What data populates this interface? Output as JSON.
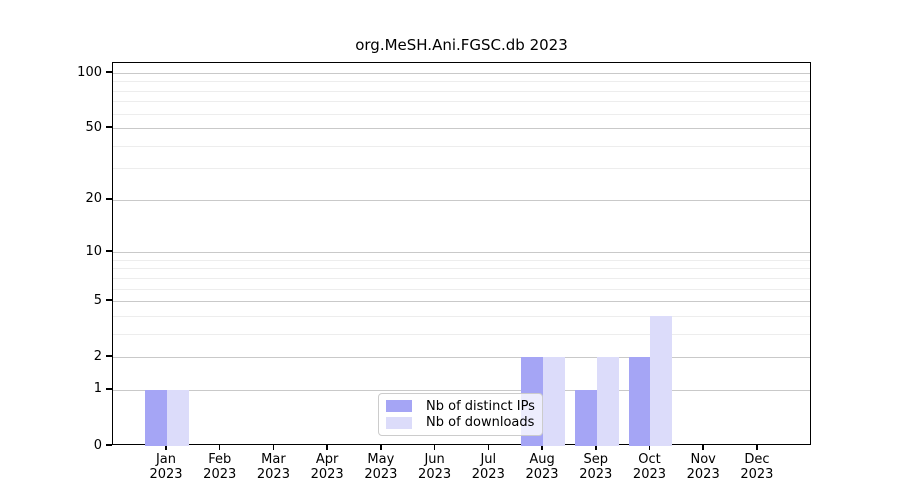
{
  "title": "org.MeSH.Ani.FGSC.db 2023",
  "chart_data": {
    "type": "bar",
    "title": "org.MeSH.Ani.FGSC.db 2023",
    "x_tick_labels": [
      {
        "month": "Jan",
        "year": "2023"
      },
      {
        "month": "Feb",
        "year": "2023"
      },
      {
        "month": "Mar",
        "year": "2023"
      },
      {
        "month": "Apr",
        "year": "2023"
      },
      {
        "month": "May",
        "year": "2023"
      },
      {
        "month": "Jun",
        "year": "2023"
      },
      {
        "month": "Jul",
        "year": "2023"
      },
      {
        "month": "Aug",
        "year": "2023"
      },
      {
        "month": "Sep",
        "year": "2023"
      },
      {
        "month": "Oct",
        "year": "2023"
      },
      {
        "month": "Nov",
        "year": "2023"
      },
      {
        "month": "Dec",
        "year": "2023"
      }
    ],
    "series": [
      {
        "name": "Nb of distinct IPs",
        "color": "#a5a5f5",
        "values": [
          1,
          0,
          0,
          0,
          0,
          0,
          0,
          2,
          1,
          2,
          0,
          0
        ]
      },
      {
        "name": "Nb of downloads",
        "color": "#dcdcfa",
        "values": [
          1,
          0,
          0,
          0,
          0,
          0,
          0,
          2,
          2,
          4,
          0,
          0
        ]
      }
    ],
    "y_scale": "log1p",
    "ylim": [
      0,
      100
    ],
    "y_ticks": [
      0,
      1,
      2,
      5,
      10,
      20,
      50,
      100
    ],
    "y_minor_gridlines": [
      3,
      4,
      6,
      7,
      8,
      9,
      30,
      40,
      60,
      70,
      80,
      90
    ],
    "grid": true,
    "legend_position": "inside-bottom-center",
    "colors": {
      "major_grid": "#c9c9c9",
      "minor_grid": "#ededed",
      "axis": "#000000",
      "background": "#ffffff"
    }
  }
}
